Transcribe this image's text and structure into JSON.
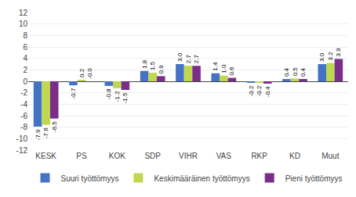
{
  "chart_data": {
    "type": "bar",
    "categories": [
      "KESK",
      "PS",
      "KOK",
      "SDP",
      "VIHR",
      "VAS",
      "RKP",
      "KD",
      "Muut"
    ],
    "series": [
      {
        "name": "Suuri työttömyys",
        "color": "#4472C4",
        "values": [
          -7.9,
          -0.7,
          -0.8,
          1.8,
          3.0,
          1.4,
          -0.2,
          0.4,
          3.0
        ],
        "value_labels": [
          "-7.9",
          "-0.7",
          "-0.8",
          "1.8",
          "3.0",
          "1.4",
          "-0.2",
          "0.4",
          "3.0"
        ]
      },
      {
        "name": "Keskimääräinen työttömyys",
        "color": "#C0D850",
        "values": [
          -7.6,
          0.2,
          -1.2,
          1.5,
          2.7,
          1.0,
          -0.2,
          0.5,
          3.2
        ],
        "value_labels": [
          "-7.6",
          "0.2",
          "-1.2",
          "1.5",
          "2.7",
          "1.0",
          "-0.2",
          "0.5",
          "3.2"
        ]
      },
      {
        "name": "Pieni työttömyys",
        "color": "#7B2D8B",
        "values": [
          -6.5,
          -0.0,
          -1.5,
          0.9,
          2.7,
          0.6,
          -0.4,
          0.4,
          3.9
        ],
        "value_labels": [
          "-6.5",
          "-0.0",
          "-1.5",
          "0.9",
          "2.7",
          "0.6",
          "-0.4",
          "0.4",
          "3.9"
        ]
      }
    ],
    "ylim": [
      -12,
      12
    ],
    "yticks": [
      -12,
      -10,
      -8,
      -6,
      -4,
      -2,
      0,
      2,
      4,
      6,
      8,
      10,
      12
    ],
    "grid": true,
    "legend": "bottom",
    "data_labels": true
  }
}
